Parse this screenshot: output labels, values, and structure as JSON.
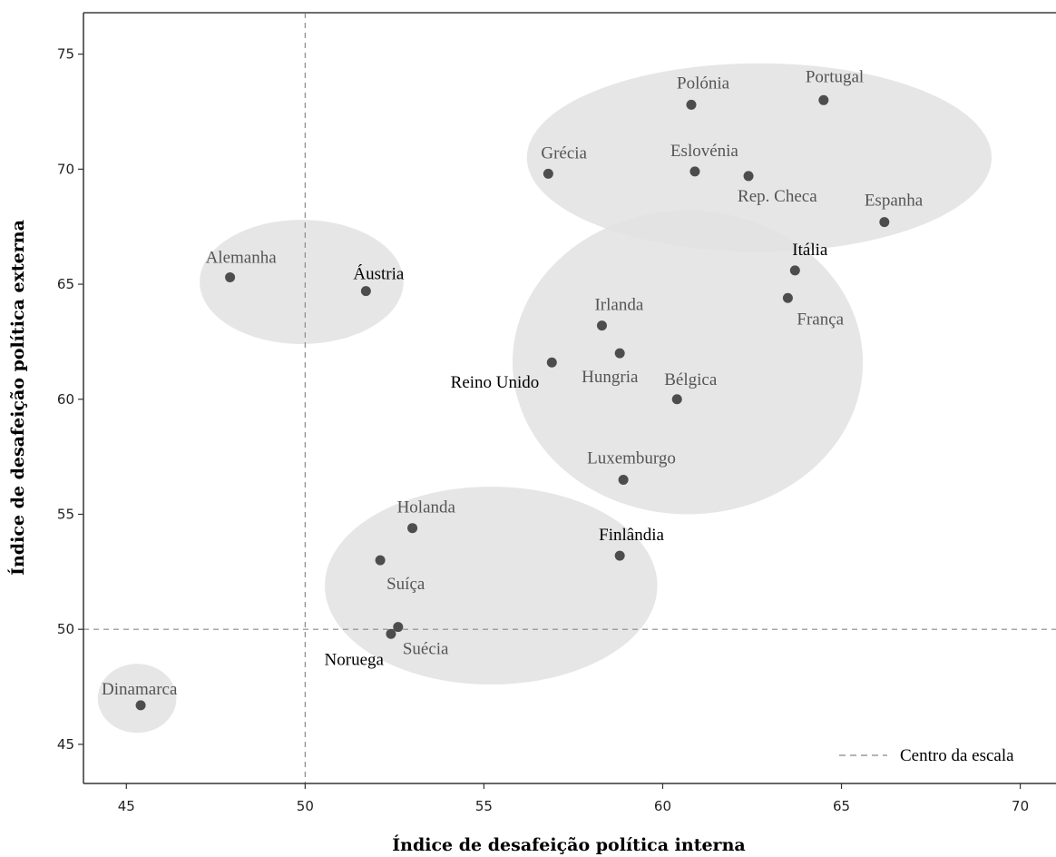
{
  "chart_data": {
    "type": "scatter",
    "xlabel": "Índice de desafeição política interna",
    "ylabel": "Índice de desafeição política externa",
    "xlim": [
      43.8,
      71.0
    ],
    "ylim": [
      43.3,
      76.8
    ],
    "xticks": [
      45,
      50,
      55,
      60,
      65,
      70
    ],
    "yticks": [
      45,
      50,
      55,
      60,
      65,
      70,
      75
    ],
    "reference_lines": [
      {
        "orientation": "vertical",
        "value": 50,
        "style": "dashed"
      },
      {
        "orientation": "horizontal",
        "value": 50,
        "style": "dashed"
      }
    ],
    "legend": {
      "position": "bottom-right",
      "entries": [
        {
          "label": "Centro da escala",
          "style": "dashed"
        }
      ]
    },
    "points": [
      {
        "label": "Portugal",
        "x": 64.5,
        "y": 73.0
      },
      {
        "label": "Polónia",
        "x": 60.8,
        "y": 72.8
      },
      {
        "label": "Grécia",
        "x": 56.8,
        "y": 69.8
      },
      {
        "label": "Eslovénia",
        "x": 60.9,
        "y": 69.9
      },
      {
        "label": "Rep. Checa",
        "x": 62.4,
        "y": 69.7
      },
      {
        "label": "Espanha",
        "x": 66.2,
        "y": 67.7
      },
      {
        "label": "Alemanha",
        "x": 47.9,
        "y": 65.3
      },
      {
        "label": "Áustria",
        "x": 51.7,
        "y": 64.7
      },
      {
        "label": "Itália",
        "x": 63.7,
        "y": 65.6
      },
      {
        "label": "França",
        "x": 63.5,
        "y": 64.4
      },
      {
        "label": "Irlanda",
        "x": 58.3,
        "y": 63.2
      },
      {
        "label": "Reino Unido",
        "x": 56.9,
        "y": 61.6
      },
      {
        "label": "Hungria",
        "x": 58.8,
        "y": 62.0
      },
      {
        "label": "Bélgica",
        "x": 60.4,
        "y": 60.0
      },
      {
        "label": "Luxemburgo",
        "x": 58.9,
        "y": 56.5
      },
      {
        "label": "Holanda",
        "x": 53.0,
        "y": 54.4
      },
      {
        "label": "Finlândia",
        "x": 58.8,
        "y": 53.2
      },
      {
        "label": "Suíça",
        "x": 52.1,
        "y": 53.0
      },
      {
        "label": "Suécia",
        "x": 52.6,
        "y": 50.1
      },
      {
        "label": "Noruega",
        "x": 52.4,
        "y": 49.8
      },
      {
        "label": "Dinamarca",
        "x": 45.4,
        "y": 46.7
      }
    ],
    "groups": [
      {
        "cx": 62.7,
        "cy": 70.5,
        "rx": 6.5,
        "ry": 4.1
      },
      {
        "cx": 60.7,
        "cy": 61.6,
        "rx": 4.9,
        "ry": 6.6
      },
      {
        "cx": 49.9,
        "cy": 65.1,
        "rx": 2.85,
        "ry": 2.7
      },
      {
        "cx": 55.2,
        "cy": 51.9,
        "rx": 4.65,
        "ry": 4.3
      },
      {
        "cx": 45.3,
        "cy": 47.0,
        "rx": 1.1,
        "ry": 1.5
      }
    ],
    "colors": {
      "point": "#4d4d4d",
      "group_fill": "#e3e3e3",
      "label_grey": "#555555",
      "label_dark": "#000000",
      "frame": "#6d6d6d"
    }
  }
}
